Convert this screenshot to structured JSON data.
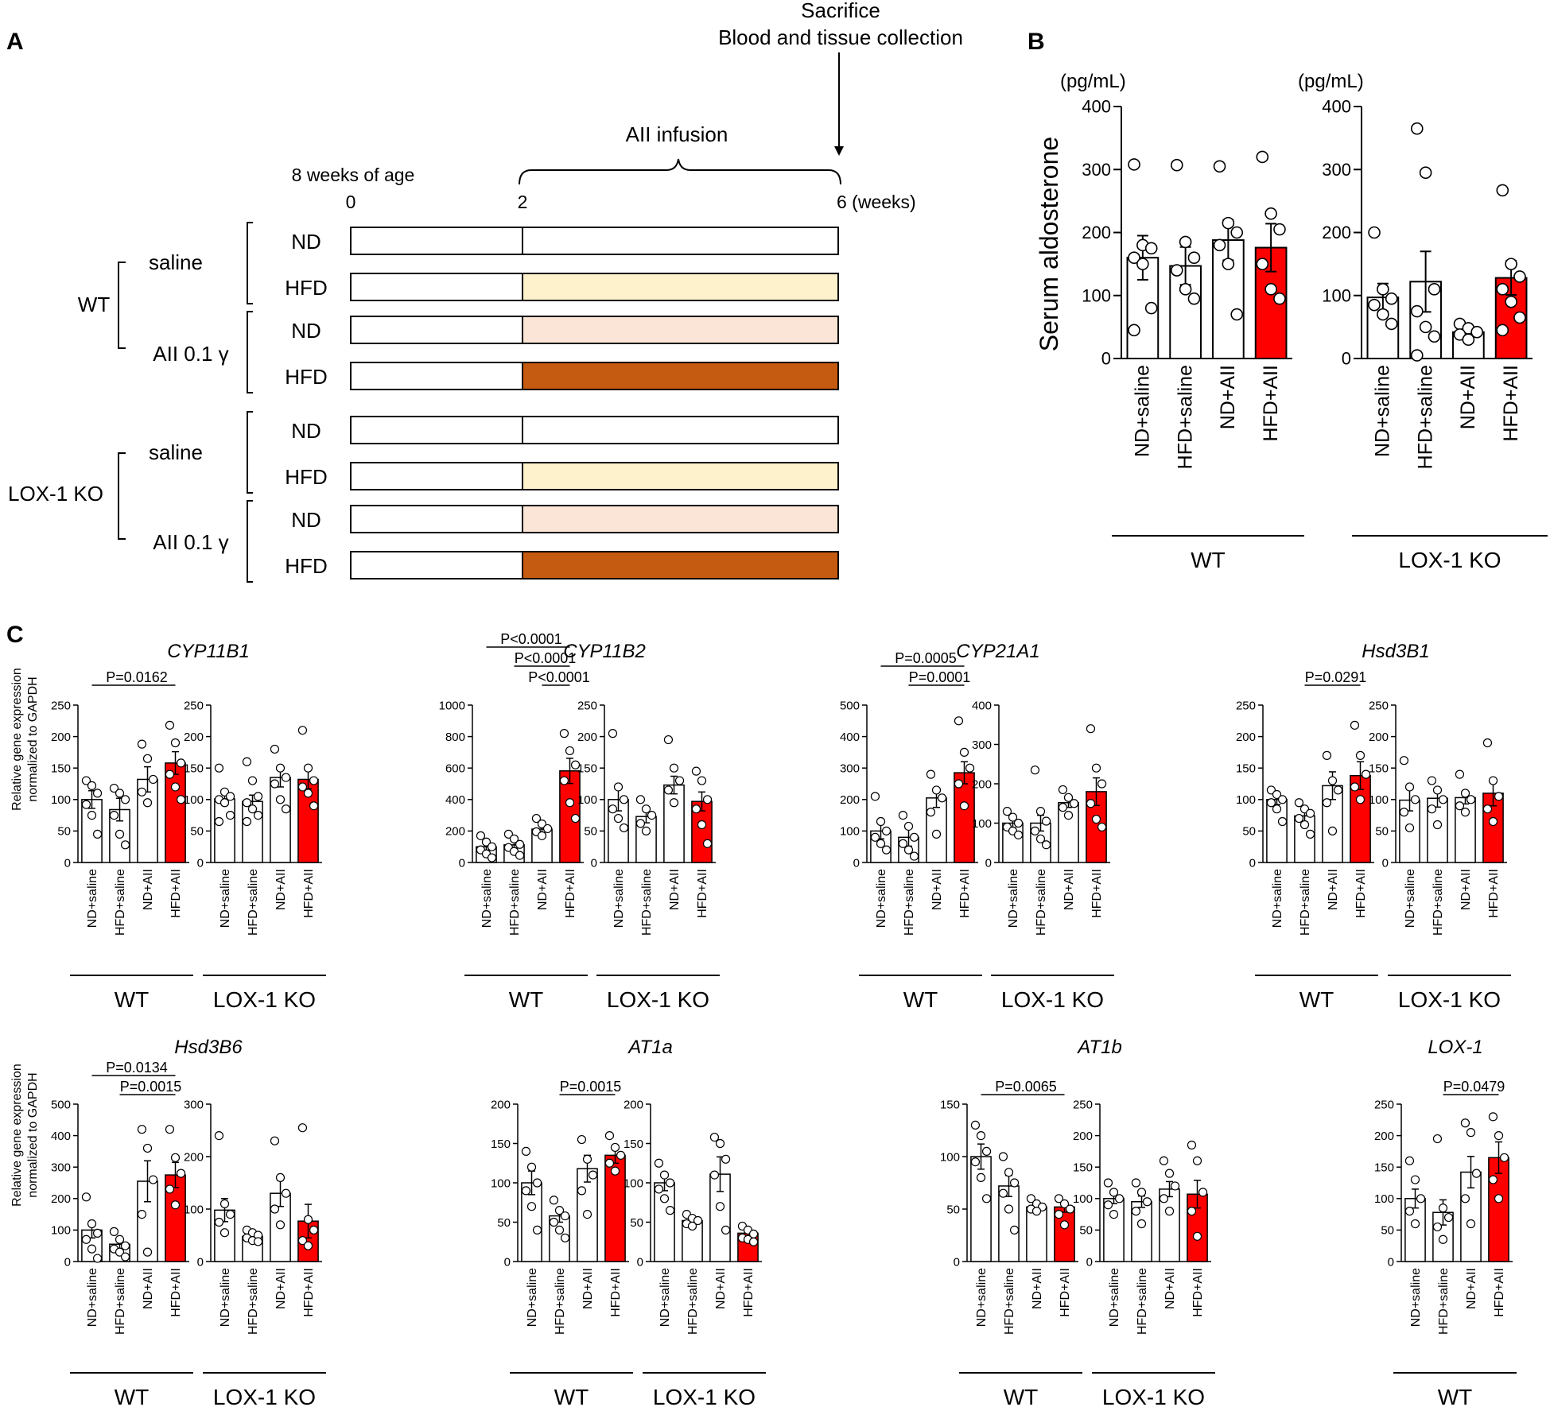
{
  "panel_letters": {
    "a": "A",
    "b": "B",
    "c": "C"
  },
  "colors": {
    "red": "#ff0000",
    "hfd_saline": "#fdf2cb",
    "nd_aii": "#fbe5d6",
    "hfd_aii": "#c55a11",
    "axis": "#000000",
    "bar_plain": "#ffffff"
  },
  "panel_a": {
    "title_sacrifice": "Sacrifice",
    "title_collection": "Blood and tissue collection",
    "aii_infusion": "AII infusion",
    "age_label": "8 weeks of age",
    "tick_0": "0",
    "tick_2": "2",
    "tick_6": "6 (weeks)",
    "group_wt": "WT",
    "group_ko": "LOX-1 KO",
    "saline": "saline",
    "aii_dose": "AII 0.1 γ",
    "rows": [
      {
        "diet": "ND",
        "fill": "none"
      },
      {
        "diet": "HFD",
        "fill": "hfd_saline"
      },
      {
        "diet": "ND",
        "fill": "nd_aii"
      },
      {
        "diet": "HFD",
        "fill": "hfd_aii"
      },
      {
        "diet": "ND",
        "fill": "none"
      },
      {
        "diet": "HFD",
        "fill": "hfd_saline"
      },
      {
        "diet": "ND",
        "fill": "nd_aii"
      },
      {
        "diet": "HFD",
        "fill": "hfd_aii"
      }
    ]
  },
  "panel_b": {
    "ylabel": "Serum aldosterone",
    "unit": "(pg/mL)",
    "group_wt": "WT",
    "group_ko": "LOX-1 KO"
  },
  "panel_c": {
    "ylabel_line1": "Relative gene expression",
    "ylabel_line2": "normalized to GAPDH",
    "group_wt": "WT",
    "group_ko": "LOX-1 KO"
  },
  "chart_data": [
    {
      "id": "B-WT",
      "type": "bar",
      "title": "",
      "ylabel": "Serum aldosterone (pg/mL)",
      "ylim": [
        0,
        400
      ],
      "yticks": [
        0,
        100,
        200,
        300,
        400
      ],
      "categories": [
        "ND+saline",
        "HFD+saline",
        "ND+AII",
        "HFD+AII"
      ],
      "values": [
        160,
        147,
        188,
        176
      ],
      "errors": [
        35,
        30,
        32,
        38
      ],
      "points": [
        [
          308,
          180,
          175,
          160,
          150,
          80,
          45
        ],
        [
          307,
          185,
          160,
          140,
          110,
          95
        ],
        [
          305,
          215,
          200,
          180,
          150,
          70
        ],
        [
          320,
          230,
          205,
          150,
          110,
          95
        ]
      ]
    },
    {
      "id": "B-KO",
      "type": "bar",
      "title": "",
      "ylabel": "(pg/mL)",
      "ylim": [
        0,
        400
      ],
      "yticks": [
        0,
        100,
        200,
        300,
        400
      ],
      "categories": [
        "ND+saline",
        "HFD+saline",
        "ND+AII",
        "HFD+AII"
      ],
      "values": [
        97,
        122,
        42,
        128
      ],
      "errors": [
        22,
        48,
        8,
        27
      ],
      "points": [
        [
          200,
          110,
          95,
          85,
          70,
          55
        ],
        [
          365,
          295,
          110,
          75,
          50,
          35,
          5
        ],
        [
          55,
          48,
          42,
          38,
          30
        ],
        [
          267,
          150,
          130,
          110,
          90,
          65,
          45
        ]
      ]
    },
    {
      "id": "C-CYP11B1-WT",
      "type": "bar",
      "title": "CYP11B1",
      "ylim": [
        0,
        250
      ],
      "yticks": [
        0,
        50,
        100,
        150,
        200,
        250
      ],
      "categories": [
        "ND+saline",
        "HFD+saline",
        "ND+AII",
        "HFD+AII"
      ],
      "values": [
        100,
        84,
        132,
        158
      ],
      "errors": [
        14,
        18,
        20,
        18
      ],
      "points": [
        [
          130,
          122,
          110,
          92,
          75,
          45
        ],
        [
          118,
          110,
          100,
          75,
          45,
          28
        ],
        [
          188,
          165,
          132,
          112,
          95
        ],
        [
          218,
          190,
          158,
          140,
          120,
          100
        ]
      ],
      "sig": [
        {
          "from": 0,
          "to": 3,
          "label": "P=0.0162"
        }
      ]
    },
    {
      "id": "C-CYP11B1-KO",
      "type": "bar",
      "title": "",
      "ylim": [
        0,
        250
      ],
      "yticks": [
        0,
        50,
        100,
        150,
        200,
        250
      ],
      "categories": [
        "ND+saline",
        "HFD+saline",
        "ND+AII",
        "HFD+AII"
      ],
      "values": [
        101,
        97,
        135,
        132
      ],
      "errors": [
        10,
        10,
        15,
        15
      ],
      "points": [
        [
          150,
          112,
          105,
          100,
          95,
          75,
          65
        ],
        [
          160,
          130,
          105,
          95,
          85,
          75,
          65
        ],
        [
          180,
          150,
          135,
          125,
          100,
          85
        ],
        [
          210,
          150,
          130,
          120,
          110,
          90
        ]
      ]
    },
    {
      "id": "C-CYP11B2-WT",
      "type": "bar",
      "title": "CYP11B2",
      "ylim": [
        0,
        1000
      ],
      "yticks": [
        0,
        200,
        400,
        600,
        800,
        1000
      ],
      "categories": [
        "ND+saline",
        "HFD+saline",
        "ND+AII",
        "HFD+AII"
      ],
      "values": [
        100,
        112,
        212,
        582
      ],
      "errors": [
        22,
        24,
        25,
        80
      ],
      "points": [
        [
          170,
          130,
          100,
          80,
          55,
          30
        ],
        [
          180,
          150,
          115,
          95,
          70,
          45
        ],
        [
          280,
          245,
          215,
          195,
          170
        ],
        [
          820,
          710,
          620,
          520,
          380,
          280
        ]
      ],
      "sig": [
        {
          "from": 0,
          "to": 3,
          "label": "P<0.0001"
        },
        {
          "from": 1,
          "to": 3,
          "label": "P<0.0001"
        },
        {
          "from": 2,
          "to": 3,
          "label": "P<0.0001"
        }
      ]
    },
    {
      "id": "C-CYP11B2-KO",
      "type": "bar",
      "title": "",
      "ylim": [
        0,
        250
      ],
      "yticks": [
        0,
        50,
        100,
        150,
        200,
        250
      ],
      "categories": [
        "ND+saline",
        "HFD+saline",
        "ND+AII",
        "HFD+AII"
      ],
      "values": [
        100,
        73,
        123,
        97
      ],
      "errors": [
        18,
        10,
        14,
        15
      ],
      "points": [
        [
          205,
          120,
          100,
          85,
          70,
          55
        ],
        [
          100,
          85,
          75,
          62,
          50
        ],
        [
          195,
          150,
          130,
          115,
          95
        ],
        [
          145,
          130,
          100,
          85,
          60,
          30
        ]
      ]
    },
    {
      "id": "C-CYP21A1-WT",
      "type": "bar",
      "title": "CYP21A1",
      "ylim": [
        0,
        500
      ],
      "yticks": [
        0,
        100,
        200,
        300,
        400,
        500
      ],
      "categories": [
        "ND+saline",
        "HFD+saline",
        "ND+AII",
        "HFD+AII"
      ],
      "values": [
        100,
        80,
        205,
        285
      ],
      "errors": [
        25,
        28,
        30,
        35
      ],
      "points": [
        [
          210,
          130,
          100,
          80,
          60,
          40
        ],
        [
          150,
          115,
          80,
          60,
          40,
          20
        ],
        [
          280,
          230,
          205,
          160,
          90
        ],
        [
          450,
          350,
          300,
          250,
          180
        ]
      ],
      "sig": [
        {
          "from": 0,
          "to": 3,
          "label": "P=0.0005"
        },
        {
          "from": 1,
          "to": 3,
          "label": "P=0.0001"
        }
      ]
    },
    {
      "id": "C-CYP21A1-KO",
      "type": "bar",
      "title": "",
      "ylim": [
        0,
        400
      ],
      "yticks": [
        0,
        100,
        200,
        300,
        400
      ],
      "categories": [
        "ND+saline",
        "HFD+saline",
        "ND+AII",
        "HFD+AII"
      ],
      "values": [
        100,
        100,
        152,
        180
      ],
      "errors": [
        12,
        20,
        12,
        35
      ],
      "points": [
        [
          130,
          115,
          100,
          90,
          80,
          70
        ],
        [
          235,
          130,
          105,
          80,
          60,
          45
        ],
        [
          185,
          165,
          150,
          140,
          120
        ],
        [
          340,
          240,
          200,
          150,
          110,
          90
        ]
      ]
    },
    {
      "id": "C-Hsd3B1-WT",
      "type": "bar",
      "title": "Hsd3B1",
      "ylim": [
        0,
        250
      ],
      "yticks": [
        0,
        50,
        100,
        150,
        200,
        250
      ],
      "categories": [
        "ND+saline",
        "HFD+saline",
        "ND+AII",
        "HFD+AII"
      ],
      "values": [
        100,
        74,
        122,
        138
      ],
      "errors": [
        8,
        10,
        22,
        22
      ],
      "points": [
        [
          115,
          108,
          100,
          95,
          85,
          65
        ],
        [
          95,
          85,
          78,
          70,
          60,
          45
        ],
        [
          170,
          130,
          115,
          95,
          50
        ],
        [
          218,
          170,
          140,
          120,
          100
        ]
      ],
      "sig": [
        {
          "from": 1,
          "to": 3,
          "label": "P=0.0291"
        }
      ]
    },
    {
      "id": "C-Hsd3B1-KO",
      "type": "bar",
      "title": "",
      "ylim": [
        0,
        250
      ],
      "yticks": [
        0,
        50,
        100,
        150,
        200,
        250
      ],
      "categories": [
        "ND+saline",
        "HFD+saline",
        "ND+AII",
        "HFD+AII"
      ],
      "values": [
        99,
        102,
        103,
        110
      ],
      "errors": [
        17,
        14,
        10,
        20
      ],
      "points": [
        [
          162,
          120,
          100,
          80,
          55
        ],
        [
          130,
          115,
          100,
          85,
          60
        ],
        [
          140,
          110,
          100,
          90,
          80
        ],
        [
          190,
          130,
          105,
          85,
          65
        ]
      ]
    },
    {
      "id": "C-Hsd3B6-WT",
      "type": "bar",
      "title": "Hsd3B6",
      "ylim": [
        0,
        500
      ],
      "yticks": [
        0,
        100,
        200,
        300,
        400,
        500
      ],
      "categories": [
        "ND+saline",
        "HFD+saline",
        "ND+AII",
        "HFD+AII"
      ],
      "values": [
        100,
        55,
        255,
        275
      ],
      "errors": [
        25,
        15,
        65,
        40
      ],
      "points": [
        [
          205,
          120,
          90,
          70,
          40,
          10
        ],
        [
          95,
          70,
          50,
          40,
          30,
          15
        ],
        [
          420,
          360,
          260,
          150,
          30
        ],
        [
          420,
          330,
          280,
          230,
          180
        ]
      ],
      "sig": [
        {
          "from": 0,
          "to": 3,
          "label": "P=0.0134"
        },
        {
          "from": 1,
          "to": 3,
          "label": "P=0.0015"
        }
      ]
    },
    {
      "id": "C-Hsd3B6-KO",
      "type": "bar",
      "title": "",
      "ylim": [
        0,
        300
      ],
      "yticks": [
        0,
        100,
        200,
        300
      ],
      "categories": [
        "ND+saline",
        "HFD+saline",
        "ND+AII",
        "HFD+AII"
      ],
      "values": [
        98,
        48,
        130,
        77
      ],
      "errors": [
        22,
        6,
        25,
        32
      ],
      "points": [
        [
          240,
          110,
          90,
          75,
          55
        ],
        [
          60,
          55,
          50,
          45,
          40,
          38
        ],
        [
          230,
          160,
          130,
          100,
          70
        ],
        [
          255,
          80,
          60,
          40,
          30
        ]
      ]
    },
    {
      "id": "C-AT1a-WT",
      "type": "bar",
      "title": "AT1a",
      "ylim": [
        0,
        200
      ],
      "yticks": [
        0,
        50,
        100,
        150,
        200
      ],
      "categories": [
        "ND+saline",
        "HFD+saline",
        "ND+AII",
        "HFD+AII"
      ],
      "values": [
        100,
        58,
        118,
        135
      ],
      "errors": [
        15,
        8,
        17,
        10
      ],
      "points": [
        [
          140,
          120,
          100,
          90,
          70,
          40
        ],
        [
          78,
          65,
          58,
          50,
          40,
          30
        ],
        [
          155,
          130,
          110,
          90,
          60
        ],
        [
          160,
          145,
          135,
          125,
          115
        ]
      ],
      "sig": [
        {
          "from": 1,
          "to": 3,
          "label": "P=0.0015"
        }
      ]
    },
    {
      "id": "C-AT1a-KO",
      "type": "bar",
      "title": "",
      "ylim": [
        0,
        200
      ],
      "yticks": [
        0,
        50,
        100,
        150,
        200
      ],
      "categories": [
        "ND+saline",
        "HFD+saline",
        "ND+AII",
        "HFD+AII"
      ],
      "values": [
        100,
        52,
        111,
        36
      ],
      "errors": [
        10,
        4,
        22,
        6
      ],
      "points": [
        [
          125,
          110,
          100,
          92,
          80,
          65
        ],
        [
          60,
          55,
          52,
          48,
          45
        ],
        [
          158,
          150,
          130,
          110,
          70,
          40
        ],
        [
          45,
          40,
          35,
          30,
          28,
          25
        ]
      ]
    },
    {
      "id": "C-AT1b-WT",
      "type": "bar",
      "title": "AT1b",
      "ylim": [
        0,
        150
      ],
      "yticks": [
        0,
        50,
        100,
        150
      ],
      "categories": [
        "ND+saline",
        "HFD+saline",
        "ND+AII",
        "HFD+AII"
      ],
      "values": [
        100,
        72,
        52,
        52
      ],
      "errors": [
        12,
        10,
        3,
        5
      ],
      "points": [
        [
          130,
          120,
          105,
          95,
          80,
          60
        ],
        [
          100,
          85,
          75,
          65,
          50,
          30
        ],
        [
          60,
          55,
          52,
          50,
          48
        ],
        [
          60,
          55,
          50,
          45,
          35
        ]
      ],
      "sig": [
        {
          "from": 0,
          "to": 3,
          "label": "P=0.0065"
        }
      ]
    },
    {
      "id": "C-AT1b-KO",
      "type": "bar",
      "title": "",
      "ylim": [
        0,
        250
      ],
      "yticks": [
        0,
        50,
        100,
        150,
        200,
        250
      ],
      "categories": [
        "ND+saline",
        "HFD+saline",
        "ND+AII",
        "HFD+AII"
      ],
      "values": [
        100,
        95,
        115,
        107
      ],
      "errors": [
        8,
        9,
        12,
        22
      ],
      "points": [
        [
          125,
          110,
          100,
          90,
          75
        ],
        [
          125,
          110,
          95,
          80,
          60
        ],
        [
          160,
          140,
          120,
          100,
          80
        ],
        [
          185,
          160,
          110,
          80,
          40
        ]
      ]
    },
    {
      "id": "C-LOX1-WT",
      "type": "bar",
      "title": "LOX-1",
      "ylim": [
        0,
        250
      ],
      "yticks": [
        0,
        50,
        100,
        150,
        200,
        250
      ],
      "categories": [
        "ND+saline",
        "HFD+saline",
        "ND+AII",
        "HFD+AII"
      ],
      "values": [
        100,
        78,
        142,
        165
      ],
      "errors": [
        15,
        20,
        25,
        25
      ],
      "points": [
        [
          160,
          130,
          100,
          80,
          60
        ],
        [
          195,
          85,
          70,
          55,
          35
        ],
        [
          220,
          205,
          140,
          100,
          60
        ],
        [
          230,
          200,
          165,
          130,
          100
        ]
      ],
      "sig": [
        {
          "from": 1,
          "to": 3,
          "label": "P=0.0479"
        }
      ]
    }
  ]
}
